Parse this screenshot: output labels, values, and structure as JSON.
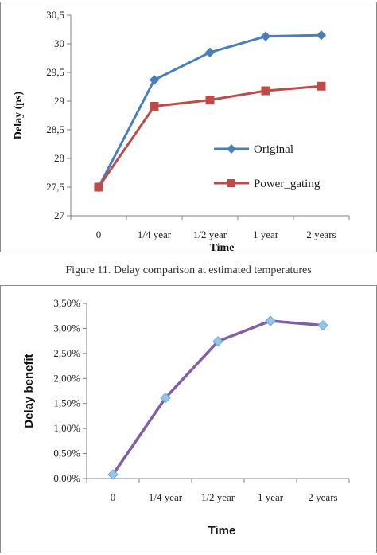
{
  "caption": "Figure 11. Delay comparison at estimated temperatures",
  "chart_data": [
    {
      "type": "line",
      "categories": [
        "0",
        "1/4 year",
        "1/2 year",
        "1 year",
        "2 years"
      ],
      "series": [
        {
          "name": "Original",
          "values": [
            27.5,
            29.37,
            29.85,
            30.13,
            30.15
          ],
          "color": "#4a7ebb",
          "marker": "diamond"
        },
        {
          "name": "Power_gating",
          "values": [
            27.5,
            28.91,
            29.02,
            29.18,
            29.26
          ],
          "color": "#be4b48",
          "marker": "square"
        }
      ],
      "xlabel": "Time",
      "ylabel": "Delay (ps)",
      "ylim": [
        27,
        30.5
      ],
      "yticks": [
        "27",
        "27,5",
        "28",
        "28,5",
        "29",
        "29,5",
        "30",
        "30,5"
      ],
      "legend": "inside-lower-right",
      "grid": false
    },
    {
      "type": "line",
      "categories": [
        "0",
        "1/4 year",
        "1/2 year",
        "1 year",
        "2 years"
      ],
      "series": [
        {
          "values": [
            0.0008,
            0.0161,
            0.0274,
            0.0315,
            0.0306
          ],
          "color": "#7f5fa9",
          "marker_color": "#93c6e8",
          "marker": "diamond"
        }
      ],
      "xlabel": "Time",
      "ylabel": "Delay benefit",
      "ylim": [
        0,
        0.035
      ],
      "yticks": [
        "0,00%",
        "0,50%",
        "1,00%",
        "1,50%",
        "2,00%",
        "2,50%",
        "3,00%",
        "3,50%"
      ],
      "grid": false
    }
  ]
}
